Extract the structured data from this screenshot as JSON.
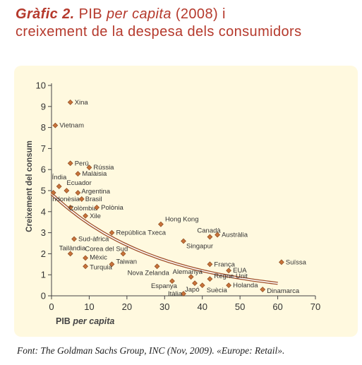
{
  "header": {
    "lead": "Gràfic 2.",
    "part1": "PIB",
    "part2": "per capita",
    "part3": "(2008) i",
    "line2": "creixement de la despesa dels consumidors"
  },
  "source": "Font: The Goldman Sachs Group, INC (Nov, 2009). «Europe: Retail».",
  "colors": {
    "title": "#b5392c",
    "panel": "#fff9df",
    "marker": "#c9733b",
    "marker_stroke": "#8a4a1e",
    "trend_outer": "#a0502a",
    "trend_inner": "#ffffff"
  },
  "chart_data": {
    "type": "scatter",
    "xlabel_main": "PIB",
    "xlabel_italic": "per capita",
    "ylabel": "Creixement del consum",
    "xlim": [
      0,
      70
    ],
    "ylim": [
      0,
      10
    ],
    "xticks": [
      "0",
      "10",
      "20",
      "30",
      "40",
      "50",
      "60",
      "70"
    ],
    "yticks": [
      "0",
      "1",
      "2",
      "3",
      "4",
      "5",
      "6",
      "7",
      "8",
      "9",
      "10"
    ],
    "grid": false,
    "trendline": "exponential-decay",
    "points": [
      {
        "label": "Xina",
        "x": 5,
        "y": 9.2
      },
      {
        "label": "Vietnam",
        "x": 1,
        "y": 8.1
      },
      {
        "label": "Perú",
        "x": 5,
        "y": 6.3
      },
      {
        "label": "Rússia",
        "x": 10,
        "y": 6.1
      },
      {
        "label": "Malàisia",
        "x": 7,
        "y": 5.8
      },
      {
        "label": "Índia",
        "x": 2,
        "y": 5.2
      },
      {
        "label": "Ecuador",
        "x": 4,
        "y": 5.0
      },
      {
        "label": "Argentina",
        "x": 7,
        "y": 4.9
      },
      {
        "label": "Indonèsia",
        "x": 0.5,
        "y": 4.9
      },
      {
        "label": "Brasil",
        "x": 8,
        "y": 4.6
      },
      {
        "label": "Colòmbia",
        "x": 5,
        "y": 4.2
      },
      {
        "label": "Polònia",
        "x": 12,
        "y": 4.2
      },
      {
        "label": "Xile",
        "x": 9,
        "y": 3.8
      },
      {
        "label": "República Txeca",
        "x": 16,
        "y": 3.0
      },
      {
        "label": "Sud-àfrica",
        "x": 6,
        "y": 2.7
      },
      {
        "label": "Tailàndia",
        "x": 5,
        "y": 2.0
      },
      {
        "label": "Corea del Sud",
        "x": 19,
        "y": 2.0
      },
      {
        "label": "Mèxic",
        "x": 9,
        "y": 1.8
      },
      {
        "label": "Turquia",
        "x": 9,
        "y": 1.4
      },
      {
        "label": "Taiwan",
        "x": 16,
        "y": 1.5
      },
      {
        "label": "Nova Zelanda",
        "x": 28,
        "y": 1.4
      },
      {
        "label": "Hong Kong",
        "x": 29,
        "y": 3.4
      },
      {
        "label": "Canadà",
        "x": 42,
        "y": 2.8
      },
      {
        "label": "Austràlia",
        "x": 44,
        "y": 2.9
      },
      {
        "label": "Singapur",
        "x": 35,
        "y": 2.6
      },
      {
        "label": "França",
        "x": 42,
        "y": 1.5
      },
      {
        "label": "EUA",
        "x": 47,
        "y": 1.2
      },
      {
        "label": "Suïssa",
        "x": 61,
        "y": 1.6
      },
      {
        "label": "Alemanya",
        "x": 37,
        "y": 0.9
      },
      {
        "label": "Regne Unit",
        "x": 42,
        "y": 0.8
      },
      {
        "label": "Espanya",
        "x": 32,
        "y": 0.7
      },
      {
        "label": "Japó",
        "x": 38,
        "y": 0.6
      },
      {
        "label": "Suècia",
        "x": 40,
        "y": 0.5
      },
      {
        "label": "Holanda",
        "x": 47,
        "y": 0.5
      },
      {
        "label": "Itàlia",
        "x": 35,
        "y": 0.1
      },
      {
        "label": "Dinamarca",
        "x": 56,
        "y": 0.3
      }
    ]
  }
}
